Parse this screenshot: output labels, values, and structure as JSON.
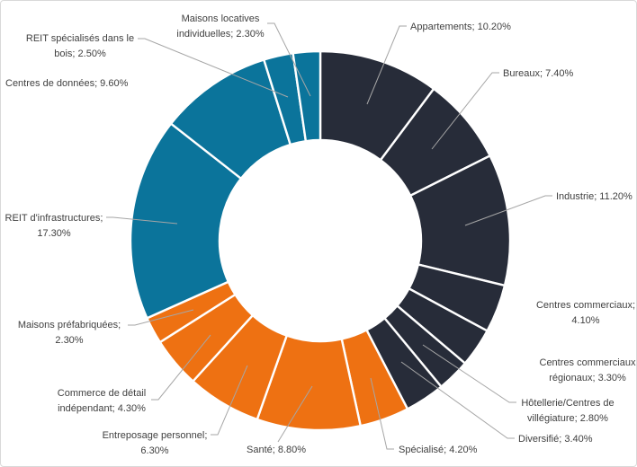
{
  "chart": {
    "background": "#FFFFFF",
    "border_color": "#D9D9D9",
    "leader_line_color": "#A6A6A6",
    "label_color": "#404040",
    "palette": {
      "dark": "#272C39",
      "orange": "#EE7112",
      "teal": "#0B749B"
    }
  },
  "chart_data": {
    "type": "pie",
    "subtype": "donut",
    "title": "",
    "unit": "%",
    "hole_ratio": 0.53,
    "start_angle_deg": 0,
    "direction": "clockwise",
    "legend": "none",
    "grid": false,
    "segments": [
      {
        "name": "Appartements",
        "value": 10.2,
        "label": "Appartements; 10.20%",
        "lines": [
          "Appartements; 10.20%"
        ],
        "color_key": "dark"
      },
      {
        "name": "Bureaux",
        "value": 7.4,
        "label": "Bureaux; 7.40%",
        "lines": [
          "Bureaux; 7.40%"
        ],
        "color_key": "dark"
      },
      {
        "name": "Industrie",
        "value": 11.2,
        "label": "Industrie; 11.20%",
        "lines": [
          "Industrie; 11.20%"
        ],
        "color_key": "dark"
      },
      {
        "name": "Centres commerciaux",
        "value": 4.1,
        "label": "Centres commerciaux; 4.10%",
        "lines": [
          "Centres commerciaux;",
          "4.10%"
        ],
        "color_key": "dark"
      },
      {
        "name": "Centres commerciaux régionaux",
        "value": 3.3,
        "label": "Centres commerciaux régionaux; 3.30%",
        "lines": [
          "Centres commerciaux",
          "régionaux; 3.30%"
        ],
        "color_key": "dark"
      },
      {
        "name": "Hôtellerie/Centres de villégiature",
        "value": 2.8,
        "label": "Hôtellerie/Centres de villégiature; 2.80%",
        "lines": [
          "Hôtellerie/Centres de",
          "villégiature; 2.80%"
        ],
        "color_key": "dark"
      },
      {
        "name": "Diversifié",
        "value": 3.4,
        "label": "Diversifié; 3.40%",
        "lines": [
          "Diversifié; 3.40%"
        ],
        "color_key": "dark"
      },
      {
        "name": "Spécialisé",
        "value": 4.2,
        "label": "Spécialisé; 4.20%",
        "lines": [
          "Spécialisé; 4.20%"
        ],
        "color_key": "orange"
      },
      {
        "name": "Santé",
        "value": 8.8,
        "label": "Santé; 8.80%",
        "lines": [
          "Santé; 8.80%"
        ],
        "color_key": "orange"
      },
      {
        "name": "Entreposage personnel",
        "value": 6.3,
        "label": "Entreposage personnel; 6.30%",
        "lines": [
          "Entreposage personnel;",
          "6.30%"
        ],
        "color_key": "orange"
      },
      {
        "name": "Commerce de détail indépendant",
        "value": 4.3,
        "label": "Commerce de détail indépendant; 4.30%",
        "lines": [
          "Commerce de détail",
          "indépendant; 4.30%"
        ],
        "color_key": "orange"
      },
      {
        "name": "Maisons préfabriquées",
        "value": 2.3,
        "label": "Maisons préfabriquées; 2.30%",
        "lines": [
          "Maisons préfabriquées;",
          "2.30%"
        ],
        "color_key": "orange"
      },
      {
        "name": "REIT d'infrastructures",
        "value": 17.3,
        "label": "REIT d'infrastructures; 17.30%",
        "lines": [
          "REIT d'infrastructures;",
          "17.30%"
        ],
        "color_key": "teal"
      },
      {
        "name": "Centres de données",
        "value": 9.6,
        "label": "Centres de données; 9.60%",
        "lines": [
          "Centres de données; 9.60%"
        ],
        "color_key": "teal"
      },
      {
        "name": "REIT spécialisés dans le bois",
        "value": 2.5,
        "label": "REIT spécialisés dans le bois; 2.50%",
        "lines": [
          "REIT spécialisés dans le",
          "bois; 2.50%"
        ],
        "color_key": "teal"
      },
      {
        "name": "Maisons locatives individuelles",
        "value": 2.3,
        "label": "Maisons locatives individuelles; 2.30%",
        "lines": [
          "Maisons locatives",
          "individuelles; 2.30%"
        ],
        "color_key": "teal"
      }
    ]
  }
}
